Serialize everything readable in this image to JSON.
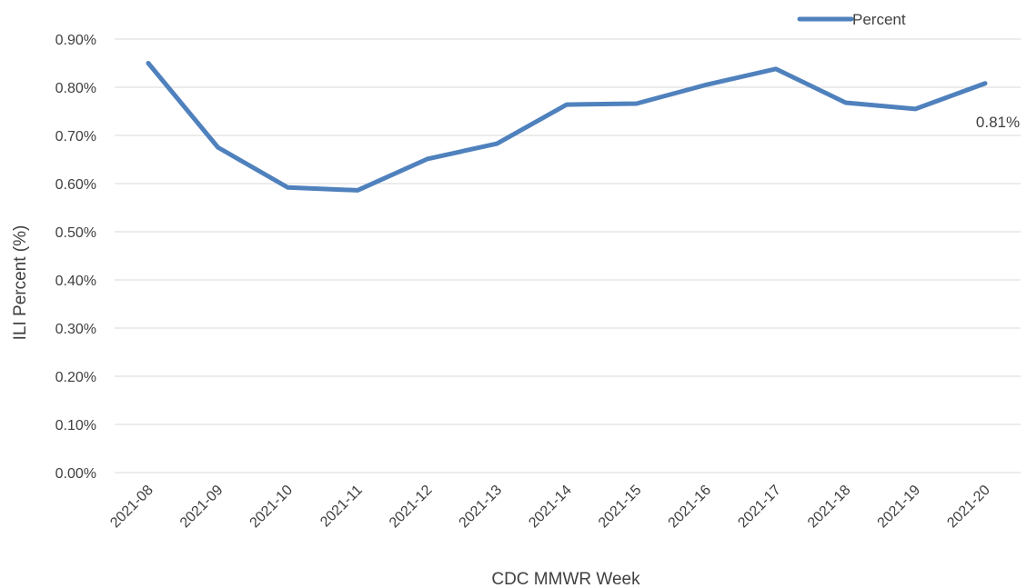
{
  "chart_data": {
    "type": "line",
    "title": "",
    "xlabel": "CDC MMWR Week",
    "ylabel": "ILI Percent (%)",
    "ylim": [
      0,
      0.9
    ],
    "yticks": [
      "0.00%",
      "0.10%",
      "0.20%",
      "0.30%",
      "0.40%",
      "0.50%",
      "0.60%",
      "0.70%",
      "0.80%",
      "0.90%"
    ],
    "categories": [
      "2021-08",
      "2021-09",
      "2021-10",
      "2021-11",
      "2021-12",
      "2021-13",
      "2021-14",
      "2021-15",
      "2021-16",
      "2021-17",
      "2021-18",
      "2021-19",
      "2021-20"
    ],
    "series": [
      {
        "name": "Percent",
        "color": "#4f81bd",
        "values": [
          0.85,
          0.675,
          0.592,
          0.586,
          0.651,
          0.683,
          0.764,
          0.766,
          0.805,
          0.838,
          0.768,
          0.755,
          0.808
        ]
      }
    ],
    "data_labels": [
      {
        "index": 12,
        "text": "0.81%"
      }
    ],
    "grid": true,
    "legend_position": "top-right"
  }
}
